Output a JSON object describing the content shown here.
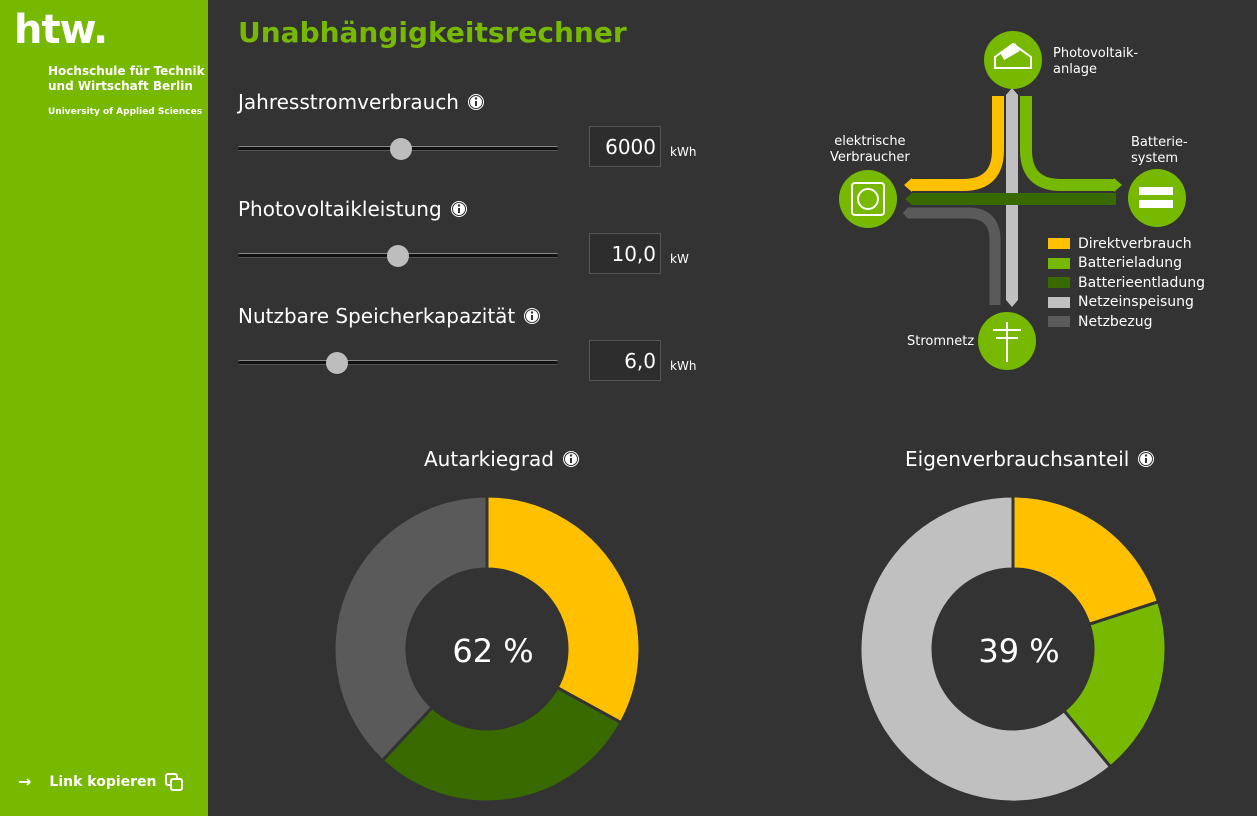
{
  "sidebar": {
    "logo_text": "htw.",
    "institution_line1": "Hochschule für Technik",
    "institution_line2": "und Wirtschaft Berlin",
    "institution_sub": "University of Applied Sciences",
    "copy_link_label": "Link kopieren"
  },
  "main": {
    "title": "Unabhängigkeitsrechner",
    "controls": [
      {
        "label": "Jahresstromverbrauch",
        "value": "6000",
        "unit": "kWh",
        "fraction": 0.51
      },
      {
        "label": "Photovoltaikleistung",
        "value": "10,0",
        "unit": "kW",
        "fraction": 0.5
      },
      {
        "label": "Nutzbare Speicherkapazität",
        "value": "6,0",
        "unit": "kWh",
        "fraction": 0.31
      }
    ]
  },
  "diagram": {
    "pv_label_1": "Photovoltaik-",
    "pv_label_2": "anlage",
    "consumer_label_1": "elektrische",
    "consumer_label_2": "Verbraucher",
    "battery_label_1": "Batterie-",
    "battery_label_2": "system",
    "grid_label": "Stromnetz"
  },
  "legend": [
    {
      "label": "Direktverbrauch",
      "color": "#ffc000"
    },
    {
      "label": "Batterieladung",
      "color": "#76b900"
    },
    {
      "label": "Batterieentladung",
      "color": "#386a00"
    },
    {
      "label": "Netzeinspeisung",
      "color": "#c0c0c0"
    },
    {
      "label": "Netzbezug",
      "color": "#5a5a5a"
    }
  ],
  "chart_data": [
    {
      "type": "pie",
      "title": "Autarkiegrad",
      "center_label": "62 %",
      "slices": [
        {
          "name": "Direktverbrauch",
          "value": 33,
          "color": "#ffc000"
        },
        {
          "name": "Batterieentladung",
          "value": 29,
          "color": "#386a00"
        },
        {
          "name": "Netzbezug",
          "value": 38,
          "color": "#5a5a5a"
        }
      ]
    },
    {
      "type": "pie",
      "title": "Eigenverbrauchsanteil",
      "center_label": "39 %",
      "slices": [
        {
          "name": "Direktverbrauch",
          "value": 20,
          "color": "#ffc000"
        },
        {
          "name": "Batterieladung",
          "value": 19,
          "color": "#76b900"
        },
        {
          "name": "Netzeinspeisung",
          "value": 61,
          "color": "#c0c0c0"
        }
      ]
    }
  ]
}
